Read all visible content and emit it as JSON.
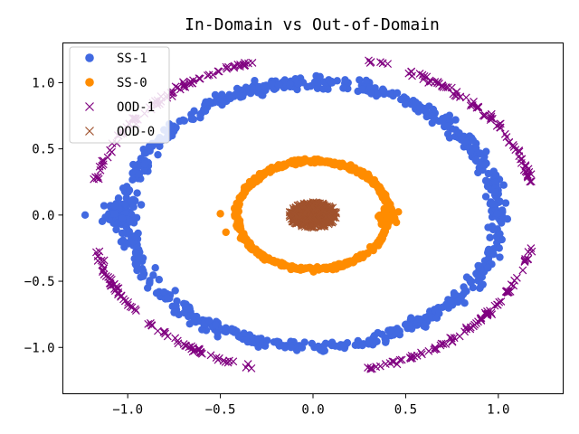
{
  "chart_data": {
    "type": "scatter",
    "title": "In-Domain vs Out-of-Domain",
    "xlabel": "",
    "ylabel": "",
    "xlim": [
      -1.35,
      1.35
    ],
    "ylim": [
      -1.35,
      1.3
    ],
    "x_ticks": [
      -1.0,
      -0.5,
      0.0,
      0.5,
      1.0
    ],
    "x_tick_labels": [
      "−1.0",
      "−0.5",
      "0.0",
      "0.5",
      "1.0"
    ],
    "y_ticks": [
      -1.0,
      -0.5,
      0.0,
      0.5,
      1.0
    ],
    "y_tick_labels": [
      "−1.0",
      "−0.5",
      "0.0",
      "0.5",
      "1.0"
    ],
    "grid": false,
    "legend_position": "upper-left",
    "series": [
      {
        "name": "SS-1",
        "marker": "circle",
        "color": "#4169e1",
        "shape": "ring",
        "center": [
          0.0,
          0.0
        ],
        "radius_x": 1.0,
        "radius_y": 1.0,
        "spread": 0.05,
        "count": 700,
        "extra_cluster": {
          "center": [
            -1.05,
            0.0
          ],
          "spread": 0.07,
          "count": 90
        },
        "outliers": [
          [
            -1.23,
            0.0
          ]
        ]
      },
      {
        "name": "SS-0",
        "marker": "circle",
        "color": "#ff8c00",
        "shape": "ring",
        "center": [
          0.0,
          0.0
        ],
        "radius_x": 0.41,
        "radius_y": 0.41,
        "spread": 0.04,
        "count": 500,
        "extra_cluster": {
          "center": [
            0.4,
            0.0
          ],
          "spread": 0.045,
          "count": 90
        },
        "outliers": [
          [
            -0.47,
            -0.13
          ],
          [
            -0.5,
            0.01
          ]
        ]
      },
      {
        "name": "OOD-1",
        "marker": "x",
        "color": "#800080",
        "shape": "arcs",
        "center": [
          0.0,
          0.0
        ],
        "radius": 1.2,
        "spread": 0.02,
        "count": 340,
        "arcs_deg": [
          [
            12,
            76
          ],
          [
            104,
            168
          ],
          [
            192,
            256
          ],
          [
            284,
            348
          ]
        ]
      },
      {
        "name": "OOD-0",
        "marker": "x",
        "color": "#a0522d",
        "shape": "blob",
        "center": [
          0.0,
          0.0
        ],
        "radius": 0.13,
        "count": 400
      }
    ]
  }
}
